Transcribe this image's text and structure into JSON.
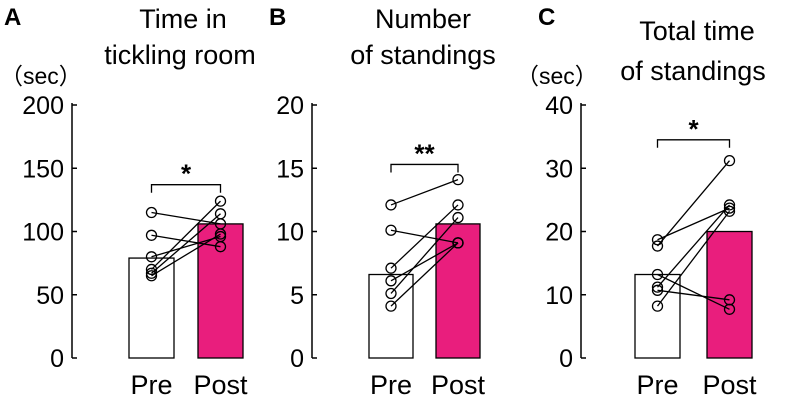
{
  "chart_data": [
    {
      "type": "bar",
      "panel": "A",
      "title_lines": [
        "Time in",
        "tickling room"
      ],
      "unit": "（sec）",
      "categories": [
        "Pre",
        "Post"
      ],
      "values": [
        79,
        106
      ],
      "bar_colors": [
        "#ffffff",
        "#e91e7d"
      ],
      "ylim": [
        0,
        200
      ],
      "yticks": [
        0,
        50,
        100,
        150,
        200
      ],
      "ytick_labels": [
        "0",
        "50",
        "100",
        "150",
        "200"
      ],
      "paired": [
        [
          65,
          98
        ],
        [
          67,
          114
        ],
        [
          70,
          124
        ],
        [
          80,
          96
        ],
        [
          97,
          88
        ],
        [
          115,
          106
        ]
      ],
      "significance": "*",
      "bracket_y": 137
    },
    {
      "type": "bar",
      "panel": "B",
      "title_lines": [
        "Number",
        "of standings"
      ],
      "unit": "",
      "categories": [
        "Pre",
        "Post"
      ],
      "values": [
        6.6,
        10.6
      ],
      "bar_colors": [
        "#ffffff",
        "#e91e7d"
      ],
      "ylim": [
        0,
        20
      ],
      "yticks": [
        0,
        5,
        10,
        15,
        20
      ],
      "ytick_labels": [
        "0",
        "5",
        "10",
        "15",
        "20"
      ],
      "paired": [
        [
          4.1,
          9.1
        ],
        [
          5.1,
          11.1
        ],
        [
          6.1,
          9.1
        ],
        [
          7.1,
          12.1
        ],
        [
          10.1,
          9.1
        ],
        [
          12.1,
          14.1
        ]
      ],
      "significance": "**",
      "bracket_y": 15.3
    },
    {
      "type": "bar",
      "panel": "C",
      "title_lines": [
        "Total time",
        "of standings"
      ],
      "unit": "（sec）",
      "categories": [
        "Pre",
        "Post"
      ],
      "values": [
        13.2,
        20.0
      ],
      "bar_colors": [
        "#ffffff",
        "#e91e7d"
      ],
      "ylim": [
        0,
        40
      ],
      "yticks": [
        0,
        10,
        20,
        30,
        40
      ],
      "ytick_labels": [
        "0",
        "10",
        "20",
        "30",
        "40"
      ],
      "paired": [
        [
          8.2,
          23.2
        ],
        [
          10.7,
          9.2
        ],
        [
          11.2,
          24.2
        ],
        [
          13.2,
          7.7
        ],
        [
          17.7,
          31.2
        ],
        [
          18.7,
          23.7
        ]
      ],
      "significance": "*",
      "bracket_y": 34.5
    }
  ]
}
